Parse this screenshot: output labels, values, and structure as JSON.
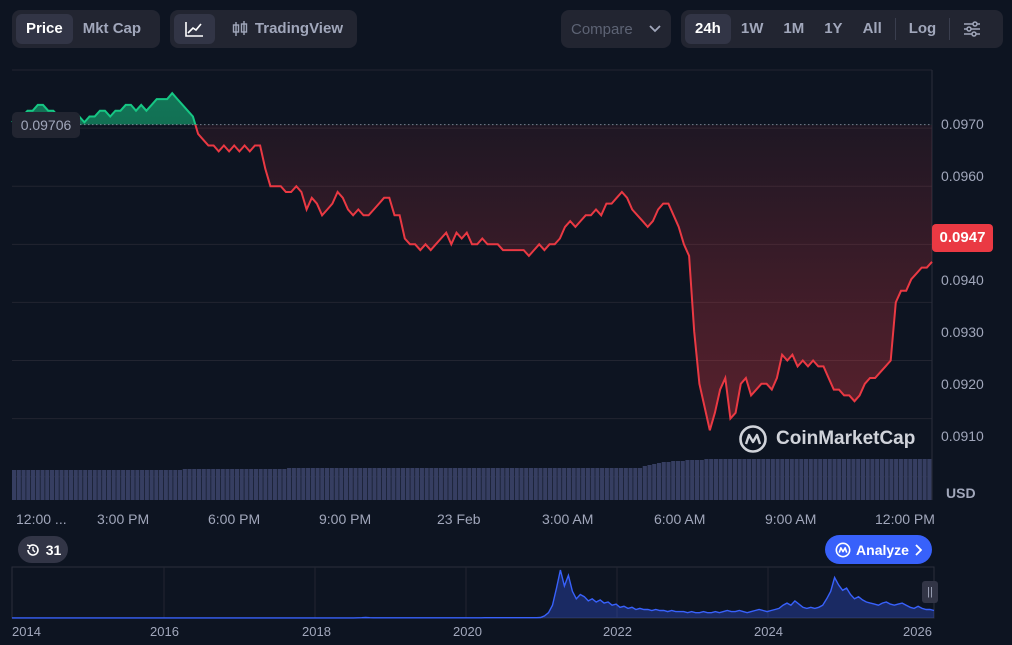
{
  "toolbar": {
    "price_label": "Price",
    "mktcap_label": "Mkt Cap",
    "tradingview_label": "TradingView",
    "compare_label": "Compare",
    "ranges": [
      "24h",
      "1W",
      "1M",
      "1Y",
      "All"
    ],
    "active_range": "24h",
    "log_label": "Log"
  },
  "current_price_label": "0.0947",
  "open_price_label": "0.09706",
  "currency_label": "USD",
  "history_count": "31",
  "analyze_label": "Analyze",
  "watermark": "CoinMarketCap",
  "colors": {
    "up": "#16c784",
    "down": "#ea3943",
    "volume": "#363e61",
    "overview": "#3861fb",
    "accent": "#3861fb"
  },
  "chart_data": [
    {
      "type": "line",
      "x_tick_labels": [
        "12:00 ...",
        "3:00 PM",
        "6:00 PM",
        "9:00 PM",
        "23 Feb",
        "3:00 AM",
        "6:00 AM",
        "9:00 AM",
        "12:00 PM"
      ],
      "y_tick_labels": [
        "0.0970",
        "0.0960",
        "0.0950",
        "0.0940",
        "0.0930",
        "0.0920",
        "0.0910"
      ],
      "y_ticks": [
        0.097,
        0.096,
        0.095,
        0.094,
        0.093,
        0.092,
        0.091
      ],
      "ylim": [
        0.0906,
        0.098
      ],
      "reference_price": 0.09706,
      "grid": true,
      "series": [
        {
          "values": [
            0.0971,
            0.0972,
            0.0972,
            0.0973,
            0.0973,
            0.0974,
            0.0974,
            0.0973,
            0.0973,
            0.0972,
            0.0971,
            0.0971,
            0.0971,
            0.0972,
            0.0971,
            0.0972,
            0.0972,
            0.0973,
            0.0973,
            0.0972,
            0.0973,
            0.0973,
            0.0974,
            0.0974,
            0.0973,
            0.0974,
            0.0973,
            0.0974,
            0.0975,
            0.0975,
            0.0975,
            0.0976,
            0.0975,
            0.0974,
            0.0973,
            0.0972,
            0.0969,
            0.0968,
            0.0967,
            0.0967,
            0.0966,
            0.0967,
            0.0966,
            0.0967,
            0.0966,
            0.0967,
            0.0966,
            0.0967,
            0.0967,
            0.0963,
            0.096,
            0.096,
            0.096,
            0.0959,
            0.0959,
            0.096,
            0.0959,
            0.0956,
            0.0958,
            0.0957,
            0.0955,
            0.0956,
            0.0957,
            0.0959,
            0.0958,
            0.0956,
            0.0955,
            0.0956,
            0.0955,
            0.0955,
            0.0956,
            0.0957,
            0.0958,
            0.0958,
            0.0955,
            0.0955,
            0.0951,
            0.095,
            0.095,
            0.0949,
            0.095,
            0.0949,
            0.095,
            0.0951,
            0.0952,
            0.095,
            0.0952,
            0.0951,
            0.0952,
            0.095,
            0.095,
            0.0951,
            0.095,
            0.095,
            0.095,
            0.0949,
            0.0949,
            0.0949,
            0.0949,
            0.0949,
            0.0948,
            0.0949,
            0.095,
            0.0949,
            0.095,
            0.095,
            0.0951,
            0.0953,
            0.0954,
            0.0953,
            0.0954,
            0.0955,
            0.0955,
            0.0956,
            0.0955,
            0.0957,
            0.0957,
            0.0958,
            0.0959,
            0.0958,
            0.0956,
            0.0955,
            0.0954,
            0.0953,
            0.0954,
            0.0956,
            0.0957,
            0.0957,
            0.0955,
            0.0953,
            0.095,
            0.0948,
            0.0935,
            0.0926,
            0.0922,
            0.0918,
            0.0921,
            0.0925,
            0.0927,
            0.092,
            0.0921,
            0.0926,
            0.0927,
            0.0924,
            0.0925,
            0.0926,
            0.0926,
            0.0925,
            0.0927,
            0.0931,
            0.093,
            0.0931,
            0.0929,
            0.093,
            0.0929,
            0.093,
            0.0929,
            0.0929,
            0.0927,
            0.0925,
            0.0925,
            0.0924,
            0.0924,
            0.0923,
            0.0924,
            0.0926,
            0.0927,
            0.0927,
            0.0928,
            0.0929,
            0.093,
            0.094,
            0.0942,
            0.0942,
            0.0944,
            0.0945,
            0.0946,
            0.0946,
            0.0947
          ]
        },
        {
          "name": "Volume",
          "values": [
            30,
            30,
            30,
            30,
            30,
            30,
            30,
            30,
            30,
            30,
            30,
            30,
            30,
            30,
            30,
            30,
            30,
            30,
            30,
            30,
            30,
            30,
            30,
            30,
            30,
            30,
            30,
            30,
            30,
            30,
            30,
            30,
            30,
            30,
            30,
            30,
            31,
            31,
            31,
            31,
            31,
            31,
            31,
            31,
            31,
            31,
            31,
            31,
            31,
            31,
            31,
            31,
            31,
            31,
            31,
            31,
            31,
            31,
            32,
            32,
            32,
            32,
            32,
            32,
            32,
            32,
            32,
            32,
            32,
            32,
            32,
            32,
            32,
            32,
            32,
            32,
            32,
            32,
            32,
            32,
            32,
            32,
            32,
            32,
            32,
            32,
            32,
            32,
            32,
            32,
            32,
            32,
            32,
            32,
            32,
            32,
            32,
            32,
            32,
            32,
            32,
            32,
            32,
            32,
            32,
            32,
            32,
            32,
            32,
            32,
            32,
            32,
            32,
            32,
            32,
            32,
            32,
            32,
            32,
            32,
            32,
            32,
            32,
            32,
            32,
            32,
            32,
            32,
            32,
            32,
            32,
            32,
            32,
            34,
            35,
            36,
            37,
            38,
            38,
            39,
            39,
            39,
            40,
            40,
            40,
            40,
            41,
            41,
            41,
            41,
            41,
            41,
            41,
            41,
            41,
            41,
            41,
            41,
            41,
            41,
            41,
            41,
            41,
            41,
            41,
            41,
            41,
            41,
            41,
            41,
            41,
            41,
            41,
            41,
            41,
            41,
            41,
            41,
            41,
            41,
            41,
            41,
            41,
            41,
            41,
            41,
            41,
            41,
            41,
            41,
            41,
            41,
            41,
            41
          ]
        }
      ]
    },
    {
      "type": "area",
      "x_tick_labels": [
        "2014",
        "2016",
        "2018",
        "2020",
        "2022",
        "2024",
        "2026"
      ],
      "series": [
        {
          "name": "All-time",
          "values": [
            0.1,
            0.1,
            0.1,
            0.1,
            0.1,
            0.1,
            0.1,
            0.1,
            0.1,
            0.1,
            0.1,
            0.1,
            0.1,
            0.1,
            0.1,
            0.1,
            0.1,
            0.1,
            0.1,
            0.1,
            0.1,
            0.1,
            0.1,
            0.1,
            0.1,
            0.1,
            0.1,
            0.1,
            0.1,
            0.1,
            0.1,
            0.1,
            0.1,
            0.1,
            0.1,
            0.1,
            0.1,
            0.1,
            0.1,
            0.1,
            0.1,
            0.1,
            0.1,
            0.1,
            0.1,
            0.1,
            0.1,
            0.1,
            0.1,
            0.1,
            0.1,
            0.1,
            0.1,
            0.1,
            0.1,
            0.1,
            0.1,
            0.1,
            0.1,
            0.1,
            0.1,
            0.1,
            0.1,
            0.1,
            0.1,
            0.1,
            0.1,
            0.1,
            0.1,
            0.1,
            0.1,
            0.1,
            0.1,
            0.1,
            0.1,
            0.1,
            0.1,
            0.1,
            0.1,
            0.1,
            0.1,
            0.1,
            0.1,
            0.1,
            0.1,
            0.1,
            0.1,
            0.2,
            0.3,
            0.5,
            0.3,
            0.2,
            0.2,
            0.2,
            0.2,
            0.2,
            0.2,
            0.2,
            0.2,
            0.2,
            0.2,
            0.2,
            0.2,
            0.2,
            0.2,
            0.2,
            0.2,
            0.2,
            0.2,
            0.2,
            0.2,
            0.2,
            0.2,
            0.2,
            0.2,
            0.2,
            0.2,
            0.2,
            0.2,
            0.3,
            0.3,
            0.3,
            0.3,
            0.3,
            0.3,
            0.3,
            0.3,
            0.3,
            0.3,
            0.3,
            0.3,
            0.3,
            0.3,
            0.5,
            2,
            5,
            12,
            28,
            45,
            30,
            40,
            25,
            18,
            22,
            20,
            16,
            18,
            15,
            17,
            14,
            15,
            12,
            13,
            10,
            11,
            9,
            10,
            8,
            9,
            8,
            8,
            7,
            8,
            7,
            7,
            6,
            7,
            6,
            6,
            6,
            5,
            6,
            5,
            5,
            6,
            5,
            5,
            6,
            5,
            6,
            7,
            6,
            6,
            7,
            6,
            5,
            6,
            7,
            8,
            7,
            6,
            7,
            8,
            9,
            12,
            14,
            12,
            16,
            13,
            10,
            9,
            10,
            9,
            10,
            12,
            18,
            25,
            38,
            31,
            26,
            28,
            22,
            18,
            20,
            17,
            15,
            14,
            13,
            12,
            14,
            15,
            13,
            12,
            13,
            14,
            12,
            10,
            9,
            11,
            9,
            8,
            8,
            7
          ]
        }
      ]
    }
  ]
}
